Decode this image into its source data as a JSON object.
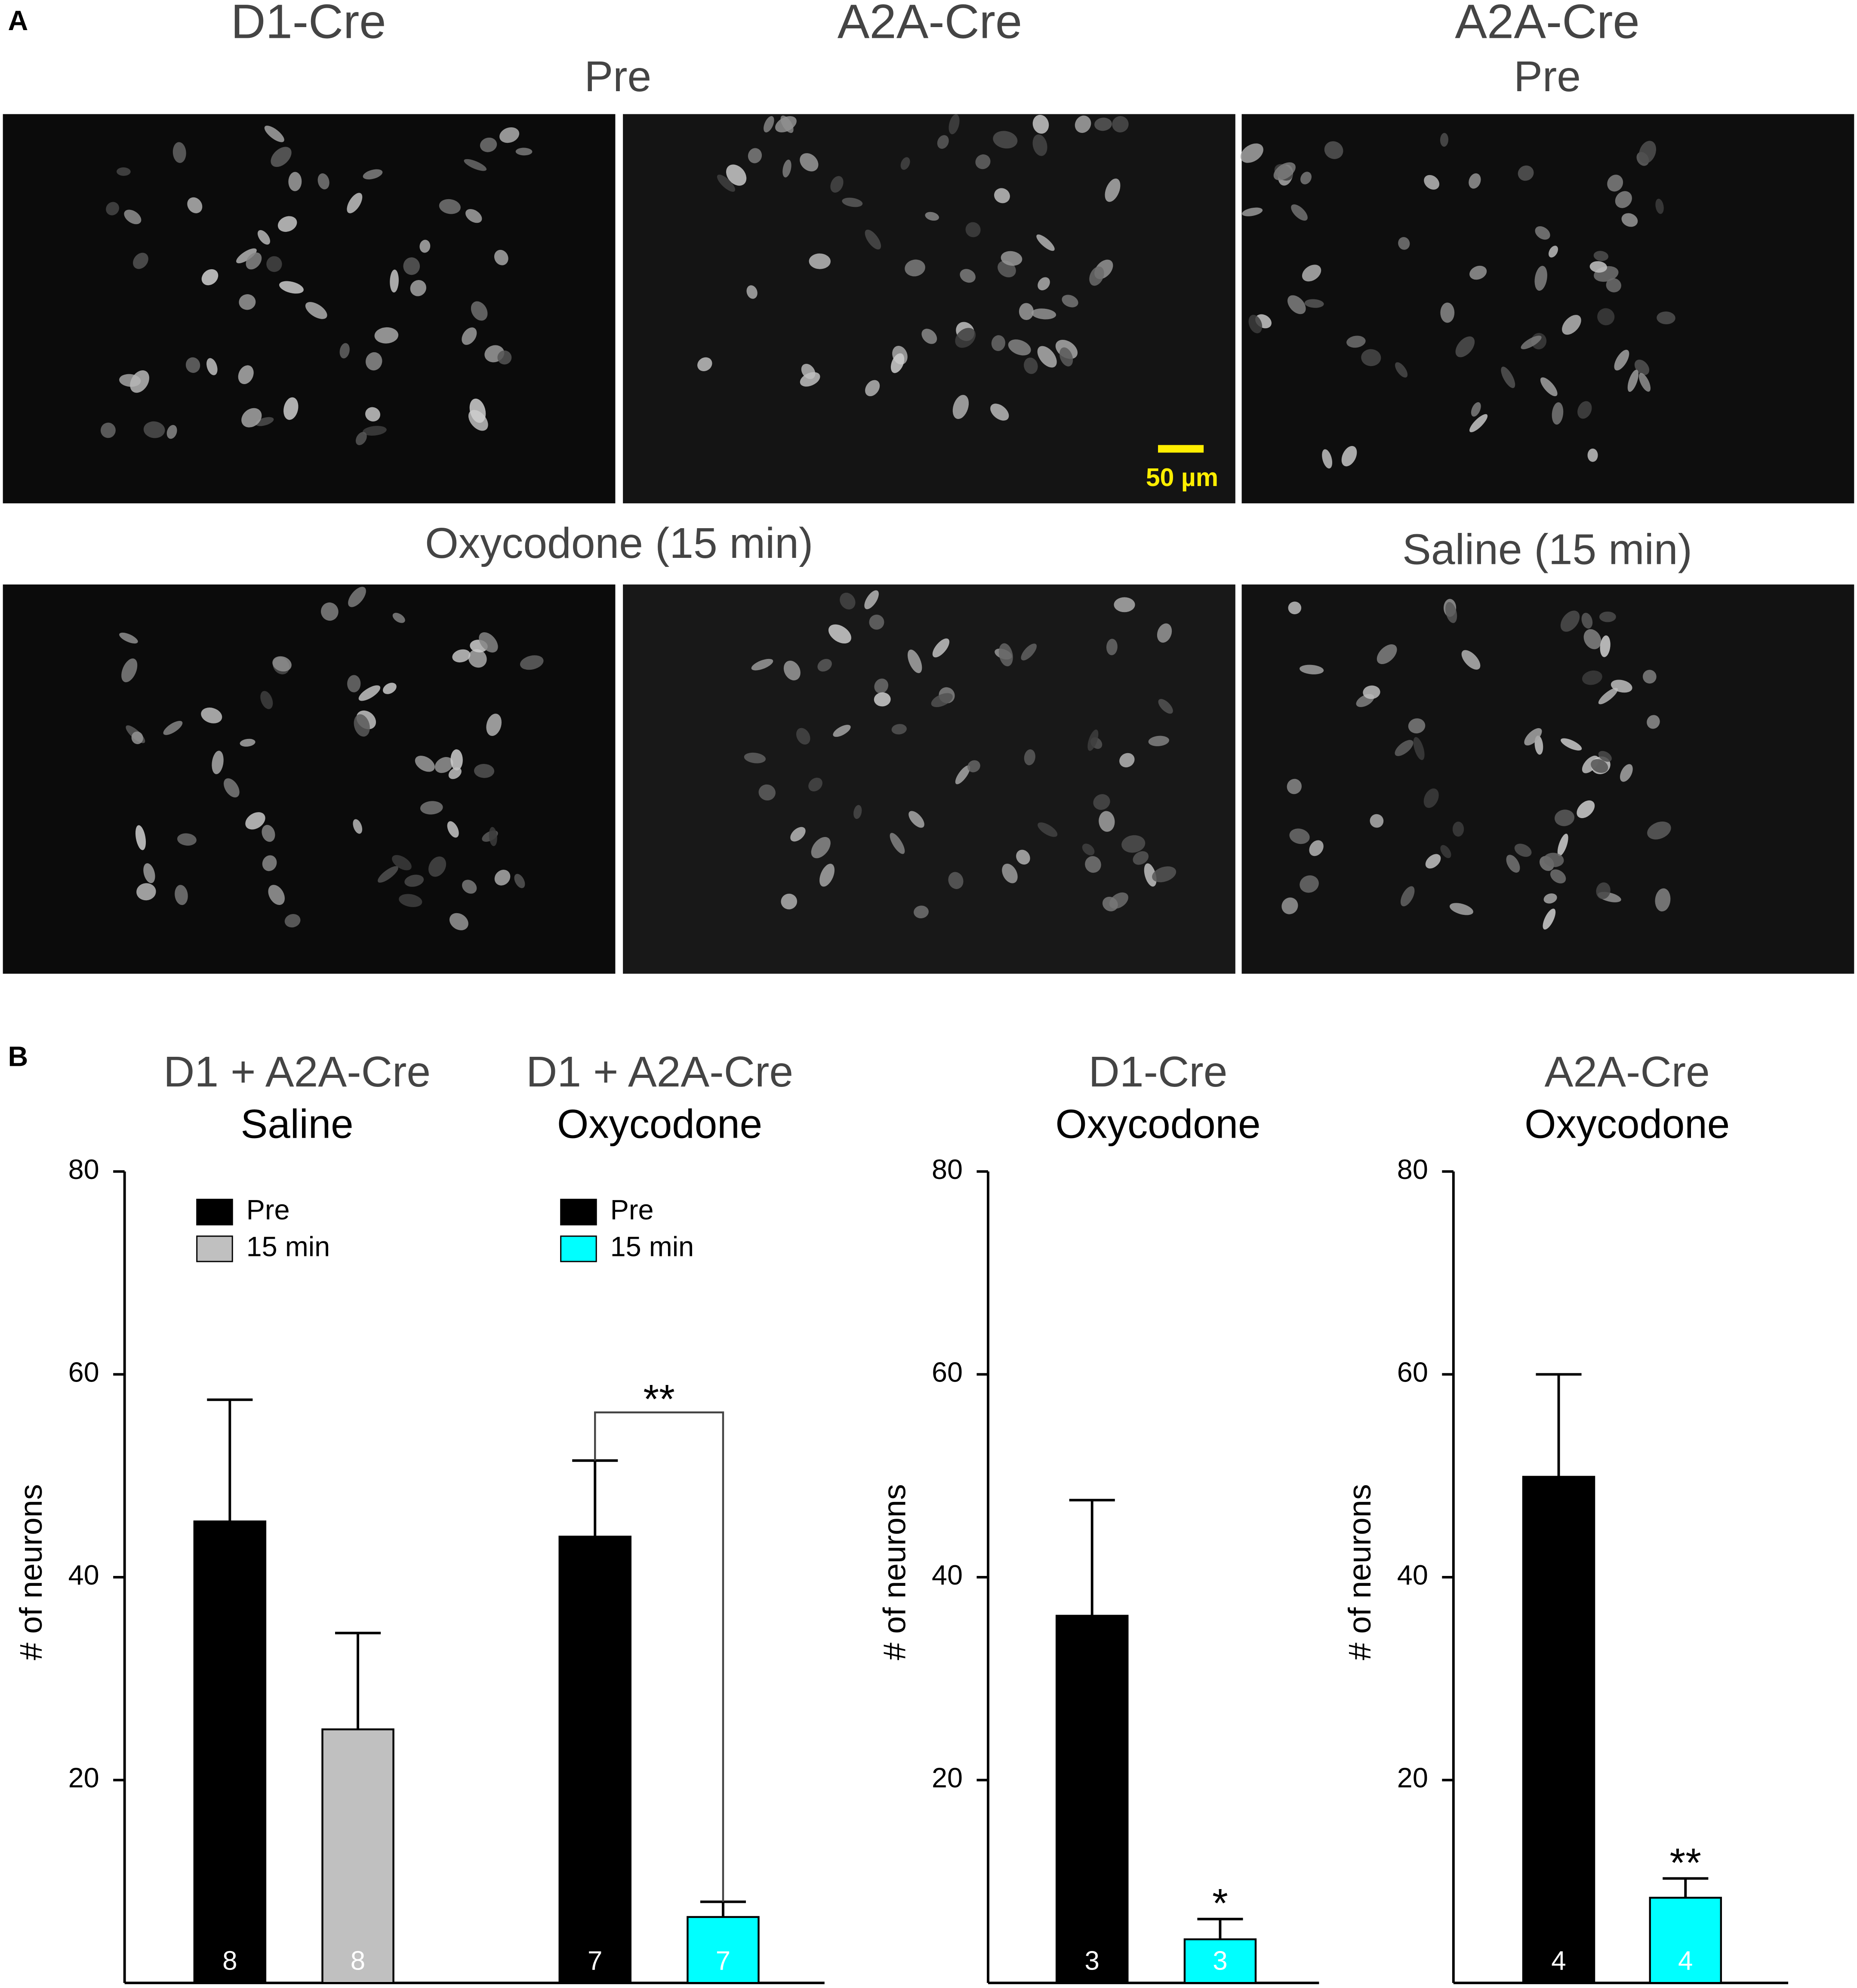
{
  "panel_a": {
    "label": "A",
    "columns": [
      "D1-Cre",
      "A2A-Cre",
      "A2A-Cre"
    ],
    "pre_left": "Pre",
    "pre_right": "Pre",
    "post_left": "Oxycodone (15 min)",
    "post_right": "Saline (15 min)",
    "scale_bar": "50 µm"
  },
  "panel_b": {
    "label": "B"
  },
  "chart_data": [
    {
      "type": "bar",
      "y_label": "# of neurons",
      "ylim": [
        0,
        80
      ],
      "yticks": [
        20,
        40,
        60,
        80
      ],
      "groups": [
        {
          "title": "D1 + A2A-Cre",
          "subtitle": "Saline",
          "series": [
            {
              "name": "Pre",
              "color": "#000000",
              "values": [
                45.5
              ],
              "errors": [
                12
              ],
              "n": [
                8
              ]
            },
            {
              "name": "15 min",
              "color": "#c0c0c0",
              "values": [
                25
              ],
              "errors": [
                9.5
              ],
              "n": [
                8
              ]
            }
          ]
        },
        {
          "title": "D1 + A2A-Cre",
          "subtitle": "Oxycodone",
          "significance": "**",
          "significance_mark": "bracket",
          "series": [
            {
              "name": "Pre",
              "color": "#000000",
              "values": [
                44
              ],
              "errors": [
                7.5
              ],
              "n": [
                7
              ]
            },
            {
              "name": "15 min",
              "color": "#00ffff",
              "values": [
                6.5
              ],
              "errors": [
                1.5
              ],
              "n": [
                7
              ]
            }
          ]
        }
      ]
    },
    {
      "type": "bar",
      "y_label": "# of neurons",
      "ylim": [
        0,
        80
      ],
      "yticks": [
        20,
        40,
        60,
        80
      ],
      "groups": [
        {
          "title": "D1-Cre",
          "subtitle": "Oxycodone",
          "significance": "*",
          "significance_mark": "above",
          "series": [
            {
              "color": "#000000",
              "values": [
                36.2
              ],
              "errors": [
                11.4
              ],
              "n": [
                3
              ]
            },
            {
              "color": "#00ffff",
              "values": [
                4.3
              ],
              "errors": [
                2
              ],
              "n": [
                3
              ]
            }
          ]
        }
      ]
    },
    {
      "type": "bar",
      "y_label": "# of neurons",
      "ylim": [
        0,
        80
      ],
      "yticks": [
        20,
        40,
        60,
        80
      ],
      "groups": [
        {
          "title": "A2A-Cre",
          "subtitle": "Oxycodone",
          "significance": "**",
          "significance_mark": "above",
          "series": [
            {
              "color": "#000000",
              "values": [
                49.9
              ],
              "errors": [
                10.1
              ],
              "n": [
                4
              ]
            },
            {
              "color": "#00ffff",
              "values": [
                8.4
              ],
              "errors": [
                1.9
              ],
              "n": [
                4
              ]
            }
          ]
        }
      ]
    }
  ]
}
